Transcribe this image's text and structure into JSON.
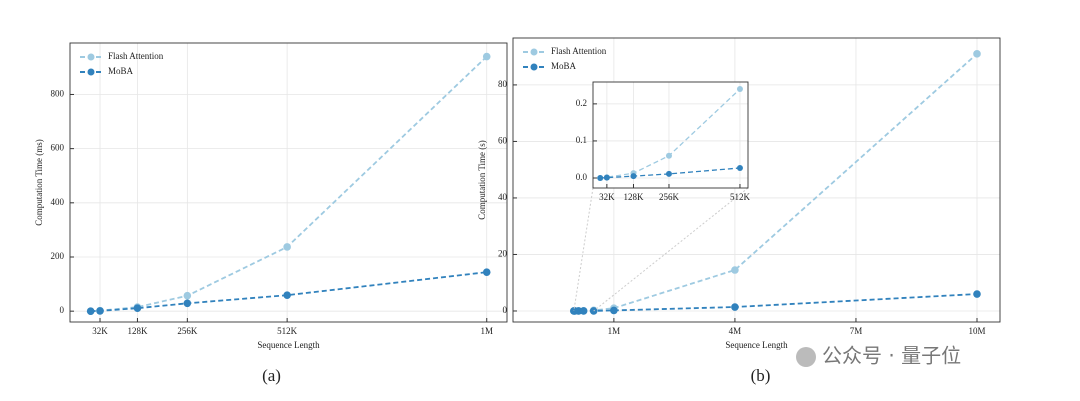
{
  "chart_data": [
    {
      "type": "line",
      "caption": "(a)",
      "xlabel": "Sequence Length",
      "ylabel": "Computation Time (ms)",
      "x": [
        8,
        32,
        128,
        256,
        512,
        1024
      ],
      "series": [
        {
          "name": "Flash Attention",
          "color": "#9ecae1",
          "values": [
            0,
            2,
            15,
            57,
            237,
            940
          ]
        },
        {
          "name": "MoBA",
          "color": "#3182bd",
          "values": [
            0,
            1,
            11,
            29,
            59,
            144
          ]
        }
      ],
      "xlim": [
        -45,
        1076
      ],
      "ylim": [
        -40,
        990
      ],
      "xticks": [
        {
          "value": 32,
          "label": "32K"
        },
        {
          "value": 128,
          "label": "128K"
        },
        {
          "value": 256,
          "label": "256K"
        },
        {
          "value": 512,
          "label": "512K"
        },
        {
          "value": 1024,
          "label": "1M"
        }
      ],
      "yticks": [
        0,
        200,
        400,
        600,
        800
      ],
      "grid": true,
      "legend": "upper left"
    },
    {
      "type": "line",
      "caption": "(b)",
      "xlabel": "Sequence Length",
      "ylabel": "Computation Time (s)",
      "x": [
        0.0078125,
        0.03125,
        0.125,
        0.25,
        0.5,
        1,
        4,
        10
      ],
      "series": [
        {
          "name": "Flash Attention",
          "color": "#9ecae1",
          "values": [
            0,
            0.002,
            0.013,
            0.06,
            0.24,
            1,
            14.5,
            91
          ]
        },
        {
          "name": "MoBA",
          "color": "#3182bd",
          "values": [
            0,
            0.001,
            0.005,
            0.011,
            0.027,
            0.2,
            1.4,
            6
          ]
        }
      ],
      "xlim": [
        -1.5,
        10.57
      ],
      "ylim": [
        -3.9,
        96.6
      ],
      "xticks": [
        {
          "value": 1,
          "label": "1M"
        },
        {
          "value": 4,
          "label": "4M"
        },
        {
          "value": 7,
          "label": "7M"
        },
        {
          "value": 10,
          "label": "10M"
        }
      ],
      "yticks": [
        0,
        20,
        40,
        60,
        80
      ],
      "grid": true,
      "legend": "upper left",
      "inset": {
        "type": "line",
        "x": [
          8,
          32,
          128,
          256,
          512
        ],
        "series": [
          {
            "color": "#9ecae1",
            "values": [
              0,
              0.002,
              0.013,
              0.06,
              0.24
            ]
          },
          {
            "color": "#3182bd",
            "values": [
              0,
              0.001,
              0.005,
              0.011,
              0.027
            ]
          }
        ],
        "xlim": [
          -18,
          541
        ],
        "ylim": [
          -0.027,
          0.259
        ],
        "xticks": [
          {
            "value": 32,
            "label": "32K"
          },
          {
            "value": 128,
            "label": "128K"
          },
          {
            "value": 256,
            "label": "256K"
          },
          {
            "value": 512,
            "label": "512K"
          }
        ],
        "yticks": [
          {
            "value": 0,
            "label": "0.0"
          },
          {
            "value": 0.1,
            "label": "0.1"
          },
          {
            "value": 0.2,
            "label": "0.2"
          }
        ],
        "grid": true
      }
    }
  ],
  "watermark": "公众号 · 量子位"
}
